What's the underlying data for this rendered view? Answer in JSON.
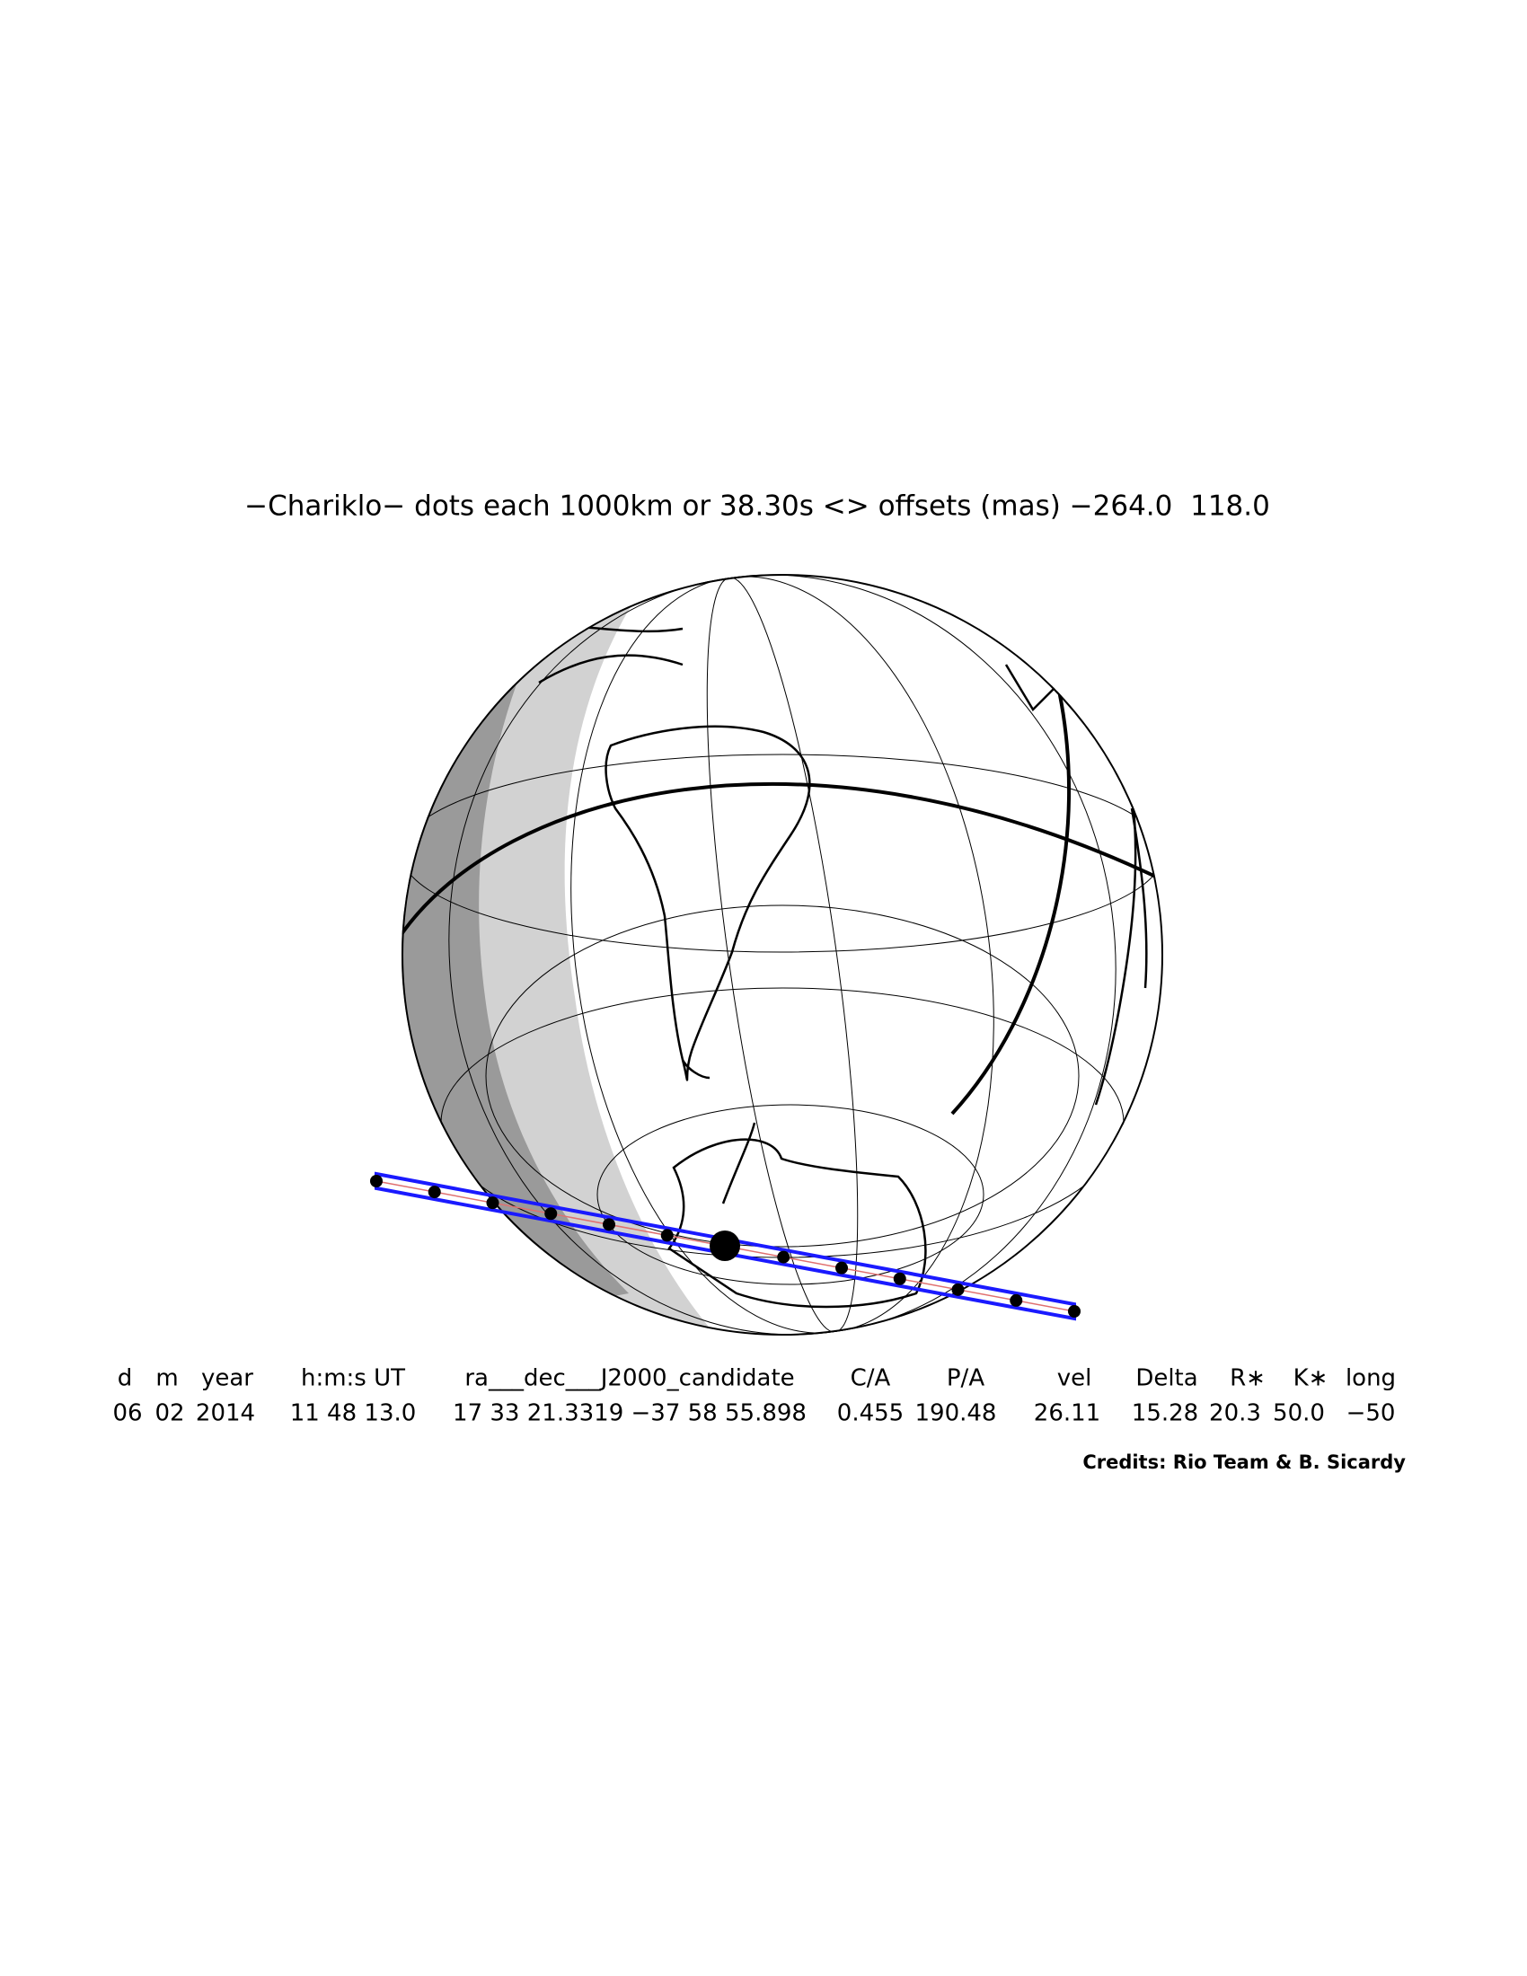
{
  "title": "−Chariklo− dots each 1000km or 38.30s <> offsets (mas) −264.0  118.0",
  "table": {
    "headers": [
      "d",
      "m",
      "year",
      "h:m:s UT",
      "ra___dec___J2000_candidate",
      "C/A",
      "P/A",
      "vel",
      "Delta",
      "R∗",
      "K∗",
      "long"
    ],
    "rows": [
      [
        "06",
        "02",
        "2014",
        "11 48 13.0",
        "17 33 21.3319 −37 58 55.898",
        "0.455",
        "190.48",
        "26.11",
        "15.28",
        "20.3",
        "50.0",
        "−50"
      ]
    ]
  },
  "credits": "Credits: Rio Team & B. Sicardy"
}
